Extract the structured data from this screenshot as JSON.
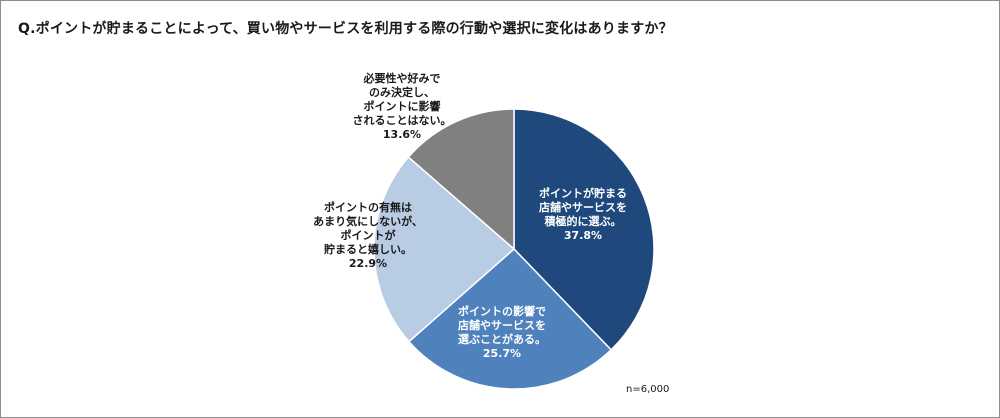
{
  "title": "Q.ポイントが貯まることによって、買い物やサービスを利用する際の行動や選択に変化はありますか？",
  "sample_note": "n=6,000",
  "colors": {
    "slice_1": "#1f497d",
    "slice_2": "#4f81bd",
    "slice_3": "#b8cce4",
    "slice_4": "#808080",
    "label_light": "#ffffff",
    "label_dark": "#1a1a1a",
    "frame": "#8c8c8c"
  },
  "chart_data": {
    "type": "pie",
    "start_angle_deg": 0,
    "direction": "clockwise",
    "slices": [
      {
        "label": [
          "ポイントが貯まる",
          "店舗やサービスを",
          "積極的に選ぶ。"
        ],
        "pct_label": "37.8%",
        "value": 37.8
      },
      {
        "label": [
          "ポイントの影響で",
          "店舗やサービスを",
          "選ぶことがある。"
        ],
        "pct_label": "25.7%",
        "value": 25.7
      },
      {
        "label": [
          "ポイントの有無は",
          "あまり気にしないが、",
          "ポイントが",
          "貯まると嬉しい。"
        ],
        "pct_label": "22.9%",
        "value": 22.9
      },
      {
        "label": [
          "必要性や好みで",
          "のみ決定し、",
          "ポイントに影響",
          "されることはない。"
        ],
        "pct_label": "13.6%",
        "value": 13.6
      }
    ]
  }
}
